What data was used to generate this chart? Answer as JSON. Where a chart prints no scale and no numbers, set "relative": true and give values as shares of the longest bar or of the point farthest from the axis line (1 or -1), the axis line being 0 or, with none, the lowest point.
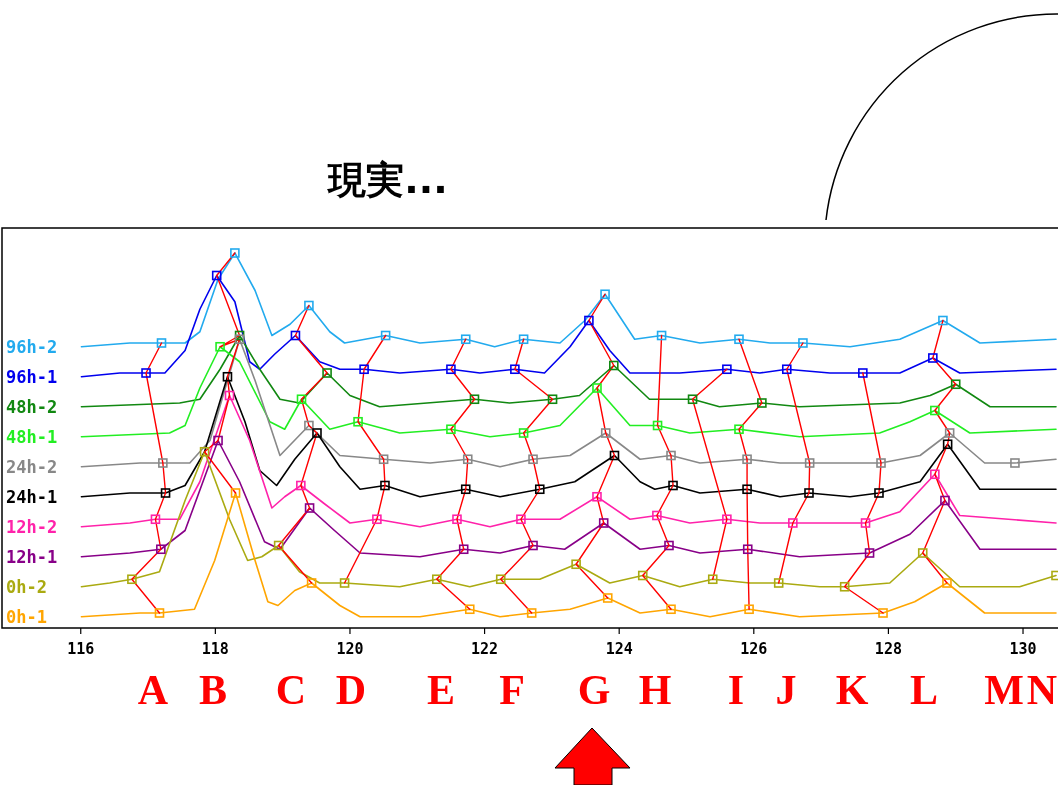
{
  "chart_data": {
    "type": "line",
    "title": "現実...",
    "relative": true,
    "marker": "none",
    "xlim": [
      114.83,
      130.49
    ],
    "xticks": [
      116,
      118,
      120,
      122,
      124,
      126,
      128,
      130
    ],
    "annotations": [
      "A",
      "B",
      "C",
      "D",
      "E",
      "F",
      "G",
      "H",
      "I",
      "J",
      "K",
      "L",
      "M",
      "N"
    ],
    "series": [
      {
        "name": "96h-2",
        "color": "#22aaee",
        "x": [
          116.01,
          116.73,
          117.2,
          117.55,
          117.77,
          118.04,
          118.29,
          118.59,
          118.84,
          119.11,
          119.39,
          119.7,
          119.92,
          120.53,
          121.04,
          121.72,
          122.15,
          122.58,
          123.12,
          123.49,
          123.79,
          124.23,
          124.63,
          125.2,
          125.78,
          126.24,
          126.73,
          127.43,
          128.17,
          128.81,
          129.36,
          130.49
        ],
        "values": [
          0.75,
          0.76,
          0.76,
          0.76,
          0.79,
          0.93,
          1.0,
          0.9,
          0.78,
          0.81,
          0.86,
          0.79,
          0.76,
          0.78,
          0.76,
          0.77,
          0.75,
          0.77,
          0.76,
          0.82,
          0.89,
          0.77,
          0.78,
          0.76,
          0.77,
          0.76,
          0.76,
          0.75,
          0.77,
          0.82,
          0.76,
          0.77
        ]
      },
      {
        "name": "96h-1",
        "color": "#0000ee",
        "x": [
          116.01,
          116.58,
          116.97,
          117.25,
          117.55,
          117.77,
          118.02,
          118.29,
          118.51,
          118.66,
          118.88,
          119.19,
          119.55,
          119.85,
          120.21,
          120.74,
          121.5,
          121.93,
          122.45,
          122.89,
          123.27,
          123.55,
          123.86,
          124.16,
          124.9,
          125.6,
          126.09,
          126.49,
          127.13,
          127.62,
          128.17,
          128.66,
          129.06,
          130.49
        ],
        "values": [
          0.67,
          0.68,
          0.68,
          0.68,
          0.74,
          0.85,
          0.94,
          0.87,
          0.71,
          0.69,
          0.73,
          0.78,
          0.71,
          0.69,
          0.69,
          0.68,
          0.69,
          0.68,
          0.69,
          0.68,
          0.75,
          0.82,
          0.74,
          0.68,
          0.68,
          0.69,
          0.68,
          0.69,
          0.68,
          0.68,
          0.68,
          0.72,
          0.68,
          0.69
        ]
      },
      {
        "name": "48h-2",
        "color": "#118811",
        "x": [
          116.01,
          117.47,
          117.77,
          118.07,
          118.36,
          118.66,
          118.96,
          119.25,
          119.66,
          120.0,
          120.44,
          121.85,
          122.37,
          123.01,
          123.41,
          123.92,
          124.45,
          125.09,
          125.49,
          126.12,
          126.68,
          128.17,
          128.62,
          129.0,
          129.51,
          130.49
        ],
        "values": [
          0.59,
          0.6,
          0.61,
          0.69,
          0.78,
          0.69,
          0.61,
          0.6,
          0.68,
          0.62,
          0.59,
          0.61,
          0.6,
          0.61,
          0.62,
          0.7,
          0.61,
          0.61,
          0.59,
          0.6,
          0.59,
          0.6,
          0.62,
          0.65,
          0.59,
          0.59
        ]
      },
      {
        "name": "48h-1",
        "color": "#22ee22",
        "x": [
          116.01,
          117.32,
          117.55,
          117.77,
          118.07,
          118.36,
          118.81,
          119.03,
          119.28,
          119.7,
          120.12,
          120.74,
          121.5,
          122.08,
          122.58,
          123.12,
          123.67,
          124.16,
          124.57,
          125.05,
          125.78,
          126.68,
          127.87,
          128.32,
          128.69,
          129.21,
          130.49
        ],
        "values": [
          0.51,
          0.52,
          0.54,
          0.64,
          0.75,
          0.71,
          0.55,
          0.53,
          0.61,
          0.53,
          0.55,
          0.52,
          0.53,
          0.51,
          0.52,
          0.54,
          0.64,
          0.54,
          0.54,
          0.52,
          0.53,
          0.51,
          0.52,
          0.55,
          0.58,
          0.52,
          0.53
        ]
      },
      {
        "name": "24h-2",
        "color": "#888888",
        "x": [
          116.01,
          116.88,
          117.22,
          117.62,
          117.92,
          118.36,
          118.59,
          118.96,
          119.39,
          119.85,
          120.5,
          121.19,
          121.75,
          122.23,
          122.72,
          123.27,
          123.8,
          124.31,
          124.77,
          125.2,
          125.9,
          126.39,
          126.83,
          127.43,
          127.89,
          128.47,
          128.91,
          129.43,
          129.88,
          130.49
        ],
        "values": [
          0.43,
          0.44,
          0.44,
          0.44,
          0.5,
          0.77,
          0.66,
          0.46,
          0.54,
          0.46,
          0.45,
          0.44,
          0.45,
          0.43,
          0.45,
          0.46,
          0.52,
          0.45,
          0.46,
          0.44,
          0.45,
          0.44,
          0.44,
          0.44,
          0.44,
          0.46,
          0.52,
          0.44,
          0.44,
          0.45
        ]
      },
      {
        "name": "24h-1",
        "color": "#000000",
        "x": [
          116.01,
          116.73,
          117.26,
          117.55,
          117.84,
          118.18,
          118.44,
          118.66,
          118.91,
          119.18,
          119.51,
          119.85,
          120.15,
          120.52,
          121.04,
          121.72,
          122.23,
          122.82,
          123.34,
          123.93,
          124.31,
          124.53,
          124.8,
          125.2,
          125.9,
          126.39,
          126.82,
          127.43,
          127.86,
          128.47,
          128.88,
          129.36,
          130.49
        ],
        "values": [
          0.35,
          0.36,
          0.36,
          0.38,
          0.47,
          0.67,
          0.55,
          0.42,
          0.38,
          0.45,
          0.52,
          0.43,
          0.37,
          0.38,
          0.35,
          0.37,
          0.35,
          0.37,
          0.39,
          0.46,
          0.39,
          0.37,
          0.38,
          0.36,
          0.37,
          0.35,
          0.36,
          0.35,
          0.36,
          0.39,
          0.49,
          0.37,
          0.37
        ]
      },
      {
        "name": "12h-2",
        "color": "#ff22aa",
        "x": [
          116.01,
          116.73,
          117.11,
          117.47,
          117.77,
          118.21,
          118.51,
          118.84,
          119.03,
          119.27,
          119.63,
          120.0,
          120.4,
          121.04,
          121.59,
          122.08,
          122.54,
          123.12,
          123.67,
          124.16,
          124.56,
          125.05,
          125.6,
          126.09,
          126.58,
          127.13,
          127.66,
          128.17,
          128.69,
          129.06,
          130.49
        ],
        "values": [
          0.27,
          0.28,
          0.29,
          0.29,
          0.39,
          0.62,
          0.5,
          0.32,
          0.35,
          0.38,
          0.33,
          0.28,
          0.29,
          0.27,
          0.29,
          0.27,
          0.29,
          0.29,
          0.35,
          0.29,
          0.3,
          0.28,
          0.29,
          0.28,
          0.28,
          0.28,
          0.28,
          0.31,
          0.41,
          0.3,
          0.28
        ]
      },
      {
        "name": "12h-1",
        "color": "#880088",
        "x": [
          116.01,
          116.73,
          117.19,
          117.55,
          118.04,
          118.36,
          118.73,
          118.96,
          119.4,
          119.77,
          120.15,
          121.04,
          121.69,
          122.23,
          122.72,
          123.19,
          123.77,
          124.31,
          124.74,
          125.2,
          125.91,
          126.68,
          127.72,
          128.32,
          128.84,
          129.36,
          130.49
        ],
        "values": [
          0.19,
          0.2,
          0.21,
          0.26,
          0.5,
          0.39,
          0.23,
          0.21,
          0.32,
          0.26,
          0.2,
          0.19,
          0.21,
          0.2,
          0.22,
          0.21,
          0.28,
          0.21,
          0.22,
          0.2,
          0.21,
          0.19,
          0.2,
          0.25,
          0.34,
          0.21,
          0.21
        ]
      },
      {
        "name": "0h-2",
        "color": "#aaaa11",
        "x": [
          116.01,
          116.43,
          116.76,
          117.17,
          117.55,
          117.84,
          118.21,
          118.48,
          118.69,
          118.94,
          119.25,
          119.55,
          119.92,
          120.74,
          121.29,
          121.78,
          122.24,
          122.82,
          123.36,
          123.86,
          124.35,
          124.9,
          125.39,
          125.94,
          126.37,
          126.98,
          127.35,
          128.02,
          128.51,
          129.06,
          129.95,
          130.49
        ],
        "values": [
          0.11,
          0.12,
          0.13,
          0.15,
          0.34,
          0.47,
          0.29,
          0.18,
          0.19,
          0.22,
          0.15,
          0.12,
          0.12,
          0.11,
          0.13,
          0.11,
          0.13,
          0.13,
          0.17,
          0.12,
          0.14,
          0.11,
          0.13,
          0.12,
          0.12,
          0.11,
          0.11,
          0.12,
          0.2,
          0.11,
          0.11,
          0.14
        ]
      },
      {
        "name": "0h-1",
        "color": "#ffa500",
        "x": [
          116.01,
          116.88,
          117.17,
          117.69,
          117.99,
          118.3,
          118.59,
          118.78,
          118.93,
          119.18,
          119.43,
          119.85,
          120.15,
          121.04,
          121.78,
          122.23,
          122.7,
          123.27,
          123.83,
          124.31,
          124.77,
          125.35,
          125.93,
          126.68,
          127.92,
          128.39,
          128.87,
          129.43,
          130.49
        ],
        "values": [
          0.03,
          0.04,
          0.04,
          0.05,
          0.18,
          0.36,
          0.18,
          0.07,
          0.06,
          0.1,
          0.12,
          0.06,
          0.03,
          0.03,
          0.05,
          0.03,
          0.04,
          0.05,
          0.08,
          0.04,
          0.05,
          0.03,
          0.05,
          0.03,
          0.04,
          0.07,
          0.12,
          0.04,
          0.04
        ]
      },
      {
        "type": "line",
        "color": "#ff0000",
        "x": [
          117.2,
          116.97,
          117.22,
          117.26,
          117.11,
          117.19,
          116.76,
          117.17
        ],
        "values": [
          0.76,
          0.68,
          0.44,
          0.36,
          0.29,
          0.21,
          0.13,
          0.04
        ]
      },
      {
        "type": "line",
        "color": "#ff0000",
        "x": [
          118.29,
          118.02,
          118.36,
          118.07,
          118.36,
          118.18,
          118.21,
          118.04,
          117.84,
          118.3
        ],
        "values": [
          1.0,
          0.94,
          0.78,
          0.75,
          0.77,
          0.67,
          0.62,
          0.5,
          0.47,
          0.36
        ]
      },
      {
        "type": "line",
        "color": "#ff0000",
        "x": [
          119.39,
          119.19,
          119.66,
          119.28,
          119.39,
          119.51,
          119.27,
          119.4,
          118.94,
          119.43
        ],
        "values": [
          0.86,
          0.78,
          0.68,
          0.61,
          0.54,
          0.52,
          0.38,
          0.32,
          0.22,
          0.12
        ]
      },
      {
        "type": "line",
        "color": "#ff0000",
        "x": [
          120.53,
          120.21,
          120.12,
          120.5,
          120.52,
          120.4,
          119.92
        ],
        "values": [
          0.78,
          0.69,
          0.55,
          0.45,
          0.38,
          0.29,
          0.12
        ]
      },
      {
        "type": "line",
        "color": "#ff0000",
        "x": [
          121.72,
          121.5,
          121.85,
          121.5,
          121.75,
          121.72,
          121.59,
          121.69,
          121.29,
          121.78
        ],
        "values": [
          0.77,
          0.69,
          0.61,
          0.53,
          0.45,
          0.37,
          0.29,
          0.21,
          0.13,
          0.05
        ]
      },
      {
        "type": "line",
        "color": "#ff0000",
        "x": [
          122.58,
          122.45,
          123.01,
          122.58,
          122.72,
          122.82,
          122.54,
          122.72,
          122.24,
          122.7
        ],
        "values": [
          0.77,
          0.69,
          0.61,
          0.52,
          0.45,
          0.37,
          0.29,
          0.22,
          0.13,
          0.04
        ]
      },
      {
        "type": "line",
        "color": "#ff0000",
        "x": [
          123.79,
          123.55,
          123.92,
          123.67,
          123.8,
          123.93,
          123.67,
          123.77,
          123.36,
          123.83
        ],
        "values": [
          0.89,
          0.82,
          0.7,
          0.64,
          0.52,
          0.46,
          0.35,
          0.28,
          0.17,
          0.08
        ]
      },
      {
        "type": "line",
        "color": "#ff0000",
        "x": [
          124.63,
          124.57,
          124.77,
          124.8,
          124.56,
          124.74,
          124.35,
          124.77
        ],
        "values": [
          0.78,
          0.54,
          0.46,
          0.38,
          0.3,
          0.22,
          0.14,
          0.05
        ]
      },
      {
        "type": "line",
        "color": "#ff0000",
        "x": [
          125.6,
          125.09,
          125.6,
          125.39
        ],
        "values": [
          0.69,
          0.61,
          0.29,
          0.13
        ]
      },
      {
        "type": "line",
        "color": "#ff0000",
        "x": [
          125.78,
          126.12,
          125.78,
          125.9,
          125.9,
          125.91,
          125.93
        ],
        "values": [
          0.77,
          0.6,
          0.53,
          0.45,
          0.37,
          0.21,
          0.05
        ]
      },
      {
        "type": "line",
        "color": "#ff0000",
        "x": [
          126.73,
          126.49,
          126.83,
          126.82,
          126.58,
          126.37
        ],
        "values": [
          0.76,
          0.69,
          0.44,
          0.36,
          0.28,
          0.12
        ]
      },
      {
        "type": "line",
        "color": "#ff0000",
        "x": [
          127.62,
          127.89,
          127.86,
          127.66,
          127.72,
          127.35,
          127.92
        ],
        "values": [
          0.68,
          0.44,
          0.36,
          0.28,
          0.2,
          0.11,
          0.04
        ]
      },
      {
        "type": "line",
        "color": "#ff0000",
        "x": [
          128.81,
          128.66,
          129.0,
          128.69,
          128.91,
          128.88,
          128.69,
          128.84,
          128.51,
          128.87
        ],
        "values": [
          0.82,
          0.72,
          0.65,
          0.58,
          0.52,
          0.49,
          0.41,
          0.34,
          0.2,
          0.12
        ]
      },
      {
        "type": "scatter",
        "color": "#22aaee",
        "marker": "square",
        "x": [
          117.2,
          118.29,
          119.39,
          120.53,
          121.72,
          122.58,
          123.79,
          124.63,
          125.78,
          126.73,
          128.81
        ],
        "values": [
          0.76,
          1.0,
          0.86,
          0.78,
          0.77,
          0.77,
          0.89,
          0.78,
          0.77,
          0.76,
          0.82
        ]
      },
      {
        "type": "scatter",
        "color": "#0000ee",
        "marker": "square",
        "x": [
          116.97,
          118.02,
          119.19,
          120.21,
          121.5,
          122.45,
          123.55,
          125.6,
          126.49,
          127.62,
          128.66
        ],
        "values": [
          0.68,
          0.94,
          0.78,
          0.69,
          0.69,
          0.69,
          0.82,
          0.69,
          0.69,
          0.68,
          0.72
        ]
      },
      {
        "type": "scatter",
        "color": "#118811",
        "marker": "square",
        "x": [
          118.36,
          119.66,
          121.85,
          123.01,
          123.92,
          125.09,
          126.12,
          129.0
        ],
        "values": [
          0.78,
          0.68,
          0.61,
          0.61,
          0.7,
          0.61,
          0.6,
          0.65
        ]
      },
      {
        "type": "scatter",
        "color": "#22ee22",
        "marker": "square",
        "x": [
          118.07,
          119.28,
          120.12,
          121.5,
          122.58,
          123.67,
          124.57,
          125.78,
          128.69
        ],
        "values": [
          0.75,
          0.61,
          0.55,
          0.53,
          0.52,
          0.64,
          0.54,
          0.53,
          0.58
        ]
      },
      {
        "type": "scatter",
        "color": "#888888",
        "marker": "square",
        "x": [
          117.22,
          118.36,
          119.39,
          120.5,
          121.75,
          122.72,
          123.8,
          124.77,
          125.9,
          126.83,
          127.89,
          128.91,
          129.88
        ],
        "values": [
          0.44,
          0.77,
          0.54,
          0.45,
          0.45,
          0.45,
          0.52,
          0.46,
          0.45,
          0.44,
          0.44,
          0.52,
          0.44
        ]
      },
      {
        "type": "scatter",
        "color": "#000000",
        "marker": "square",
        "x": [
          117.26,
          118.18,
          119.51,
          120.52,
          121.72,
          122.82,
          123.93,
          124.8,
          125.9,
          126.82,
          127.86,
          128.88
        ],
        "values": [
          0.36,
          0.67,
          0.52,
          0.38,
          0.37,
          0.37,
          0.46,
          0.38,
          0.37,
          0.36,
          0.36,
          0.49
        ]
      },
      {
        "type": "scatter",
        "color": "#ff22aa",
        "marker": "square",
        "x": [
          117.11,
          118.21,
          119.27,
          120.4,
          121.59,
          122.54,
          123.67,
          124.56,
          125.6,
          126.58,
          127.66,
          128.69
        ],
        "values": [
          0.29,
          0.62,
          0.38,
          0.29,
          0.29,
          0.29,
          0.35,
          0.3,
          0.29,
          0.28,
          0.28,
          0.41
        ]
      },
      {
        "type": "scatter",
        "color": "#880088",
        "marker": "square",
        "x": [
          117.19,
          118.04,
          119.4,
          121.69,
          122.72,
          123.77,
          124.74,
          125.91,
          127.72,
          128.84
        ],
        "values": [
          0.21,
          0.5,
          0.32,
          0.21,
          0.22,
          0.28,
          0.22,
          0.21,
          0.2,
          0.34
        ]
      },
      {
        "type": "scatter",
        "color": "#aaaa11",
        "marker": "square",
        "x": [
          116.76,
          117.84,
          118.94,
          119.92,
          121.29,
          122.24,
          123.36,
          124.35,
          125.39,
          126.37,
          127.35,
          128.51,
          130.49
        ],
        "values": [
          0.13,
          0.47,
          0.22,
          0.12,
          0.13,
          0.13,
          0.17,
          0.14,
          0.13,
          0.12,
          0.11,
          0.2,
          0.14
        ]
      },
      {
        "type": "scatter",
        "color": "#ffa500",
        "marker": "square",
        "x": [
          117.17,
          118.3,
          119.43,
          121.78,
          122.7,
          123.83,
          124.77,
          125.93,
          127.92,
          128.87
        ],
        "values": [
          0.04,
          0.36,
          0.12,
          0.05,
          0.04,
          0.08,
          0.05,
          0.05,
          0.04,
          0.12
        ]
      }
    ]
  }
}
